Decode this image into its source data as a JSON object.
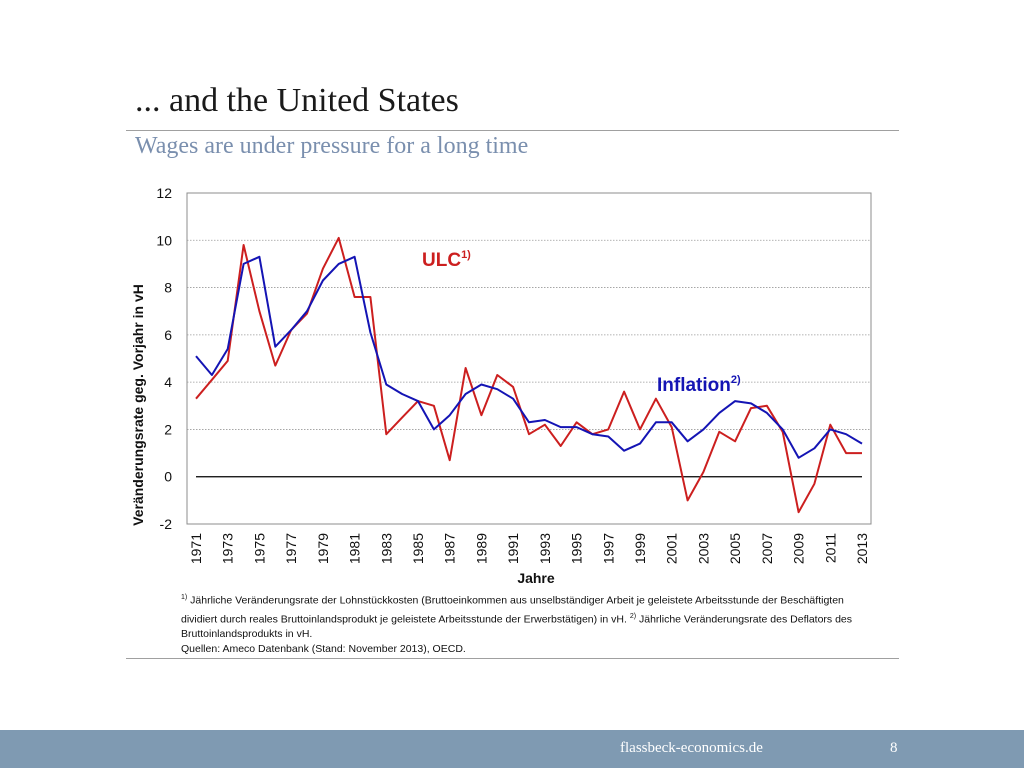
{
  "slide": {
    "title": "... and the United States",
    "subtitle": "Wages are under pressure for a long time"
  },
  "chart_data": {
    "type": "line",
    "ylabel": "Veränderungsrate geg. Vorjahr in vH",
    "xlabel": "Jahre",
    "ylim": [
      -2,
      12
    ],
    "yticks": [
      -2,
      0,
      2,
      4,
      6,
      8,
      10,
      12
    ],
    "grid": true,
    "x": [
      1971,
      1972,
      1973,
      1974,
      1975,
      1976,
      1977,
      1978,
      1979,
      1980,
      1981,
      1982,
      1983,
      1984,
      1985,
      1986,
      1987,
      1988,
      1989,
      1990,
      1991,
      1992,
      1993,
      1994,
      1995,
      1996,
      1997,
      1998,
      1999,
      2000,
      2001,
      2002,
      2003,
      2004,
      2005,
      2006,
      2007,
      2008,
      2009,
      2010,
      2011,
      2012,
      2013
    ],
    "xtick_labels": [
      "1971",
      "1973",
      "1975",
      "1977",
      "1979",
      "1981",
      "1983",
      "1985",
      "1987",
      "1989",
      "1991",
      "1993",
      "1995",
      "1997",
      "1999",
      "2001",
      "2003",
      "2005",
      "2007",
      "2009",
      "2011",
      "2013"
    ],
    "series": [
      {
        "name": "ULC",
        "label_main": "ULC",
        "label_sup": "1)",
        "color": "#cc1f1f",
        "values": [
          3.3,
          4.1,
          4.9,
          9.8,
          7.0,
          4.7,
          6.2,
          6.9,
          8.8,
          10.1,
          7.6,
          7.6,
          1.8,
          2.5,
          3.2,
          3.0,
          0.7,
          4.6,
          2.6,
          4.3,
          3.8,
          1.8,
          2.2,
          1.3,
          2.3,
          1.8,
          2.0,
          3.6,
          2.0,
          3.3,
          2.1,
          -1.0,
          0.2,
          1.9,
          1.5,
          2.9,
          3.0,
          1.9,
          -1.5,
          -0.3,
          2.2,
          1.0,
          1.0
        ]
      },
      {
        "name": "Inflation",
        "label_main": "Inflation",
        "label_sup": "2)",
        "color": "#1414b4",
        "values": [
          5.1,
          4.3,
          5.4,
          9.0,
          9.3,
          5.5,
          6.2,
          7.0,
          8.3,
          9.0,
          9.3,
          6.1,
          3.9,
          3.5,
          3.2,
          2.0,
          2.6,
          3.5,
          3.9,
          3.7,
          3.3,
          2.3,
          2.4,
          2.1,
          2.1,
          1.8,
          1.7,
          1.1,
          1.4,
          2.3,
          2.3,
          1.5,
          2.0,
          2.7,
          3.2,
          3.1,
          2.7,
          2.0,
          0.8,
          1.2,
          2.0,
          1.8,
          1.4
        ]
      }
    ]
  },
  "footnote": {
    "marker1": "1)",
    "text1": " Jährliche Veränderungsrate der Lohnstückkosten (Bruttoeinkommen aus unselbständiger Arbeit je geleistete Arbeitsstunde der Beschäftigten dividiert durch reales Bruttoinlandsprodukt je geleistete Arbeitsstunde der Erwerbstätigen) in vH.",
    "marker2": "2)",
    "text2": " Jährliche Veränderungsrate des Deflators des Bruttoinlandsprodukts in vH.",
    "sources": "Quellen: Ameco Datenbank (Stand: November 2013), OECD."
  },
  "footer": {
    "site": "flassbeck-economics.de",
    "page": "8"
  }
}
